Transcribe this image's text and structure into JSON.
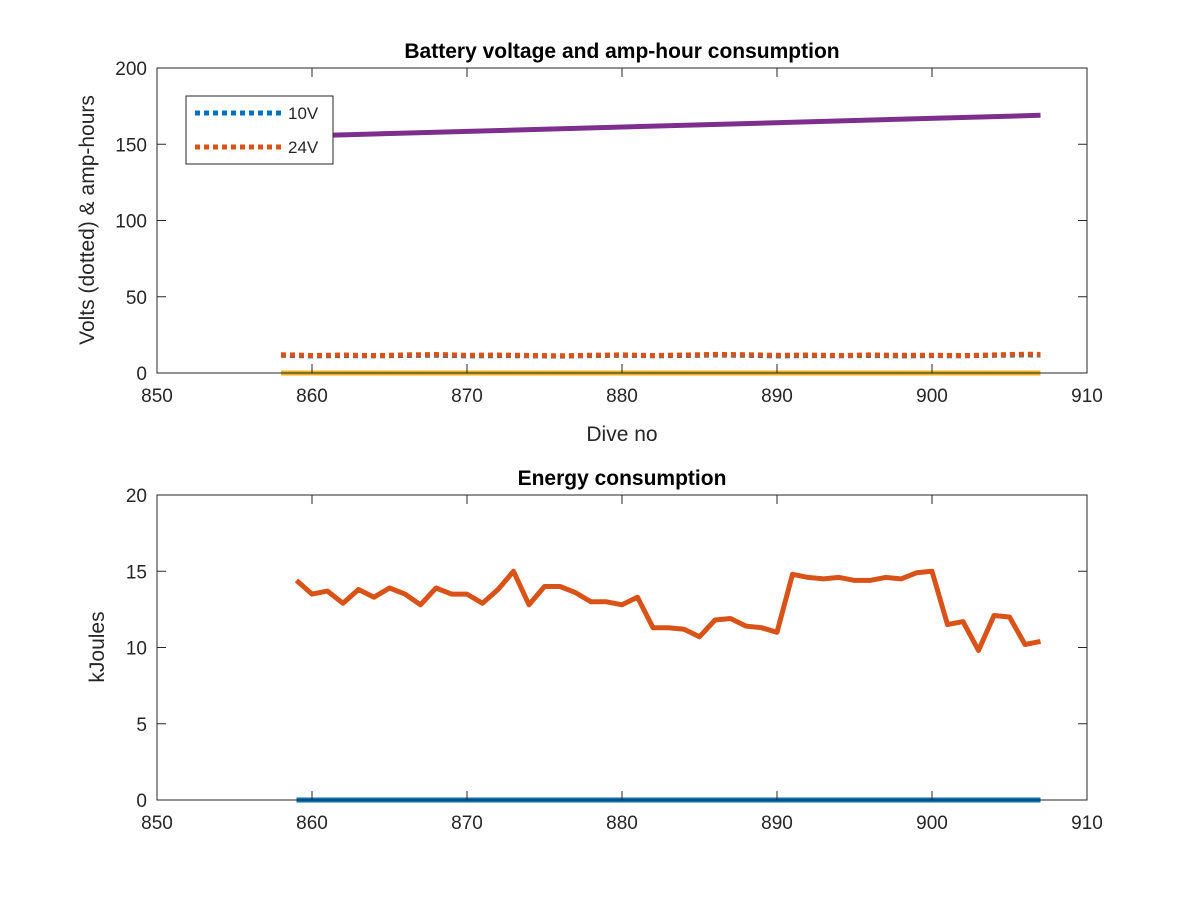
{
  "chart_data": [
    {
      "type": "line",
      "title": "Battery voltage and amp-hour consumption",
      "xlabel": "Dive no",
      "ylabel": "Volts (dotted) & amp-hours",
      "xlim": [
        850,
        910
      ],
      "ylim": [
        0,
        200
      ],
      "xticks": [
        "850",
        "860",
        "870",
        "880",
        "890",
        "900",
        "910"
      ],
      "yticks": [
        "0",
        "50",
        "100",
        "150",
        "200"
      ],
      "grid": false,
      "legend_placement": "top-left",
      "series": [
        {
          "name": "10V",
          "style": "dotted",
          "color": "#0072BD",
          "x": [
            858,
            860,
            862,
            864,
            866,
            868,
            870,
            872,
            874,
            876,
            878,
            880,
            882,
            884,
            886,
            888,
            890,
            892,
            894,
            896,
            898,
            900,
            902,
            904,
            906,
            907
          ],
          "y": [
            11.6,
            11.2,
            11.4,
            11.3,
            11.5,
            11.7,
            11.2,
            11.4,
            11.3,
            11.1,
            11.4,
            11.6,
            11.3,
            11.5,
            11.8,
            11.6,
            11.2,
            11.4,
            11.3,
            11.5,
            11.2,
            11.4,
            11.3,
            11.6,
            11.9,
            11.8
          ]
        },
        {
          "name": "24V",
          "style": "dotted",
          "color": "#D95319",
          "x": [
            858,
            860,
            862,
            864,
            866,
            868,
            870,
            872,
            874,
            876,
            878,
            880,
            882,
            884,
            886,
            888,
            890,
            892,
            894,
            896,
            898,
            900,
            902,
            904,
            906,
            907
          ],
          "y": [
            12.0,
            11.5,
            11.8,
            11.4,
            11.9,
            12.1,
            11.6,
            11.8,
            11.5,
            11.3,
            11.7,
            11.9,
            11.5,
            11.8,
            12.2,
            12.0,
            11.6,
            11.8,
            11.5,
            11.9,
            11.6,
            11.7,
            11.4,
            11.9,
            12.3,
            12.2
          ]
        },
        {
          "style": "solid",
          "color": "#7E2F8E",
          "x": [
            858,
            907
          ],
          "y": [
            155,
            169
          ]
        },
        {
          "style": "solid",
          "color": "#EDB120",
          "x": [
            858,
            907
          ],
          "y": [
            0,
            0
          ]
        }
      ]
    },
    {
      "type": "line",
      "title": "Energy consumption",
      "xlabel": "",
      "ylabel": "kJoules",
      "xlim": [
        850,
        910
      ],
      "ylim": [
        0,
        20
      ],
      "xticks": [
        "850",
        "860",
        "870",
        "880",
        "890",
        "900",
        "910"
      ],
      "yticks": [
        "0",
        "5",
        "10",
        "15",
        "20"
      ],
      "grid": false,
      "series": [
        {
          "style": "solid",
          "color": "#D95319",
          "x": [
            859,
            860,
            861,
            862,
            863,
            864,
            865,
            866,
            867,
            868,
            869,
            870,
            871,
            872,
            873,
            874,
            875,
            876,
            877,
            878,
            879,
            880,
            881,
            882,
            883,
            884,
            885,
            886,
            887,
            888,
            889,
            890,
            891,
            892,
            893,
            894,
            895,
            896,
            897,
            898,
            899,
            900,
            901,
            902,
            903,
            904,
            905,
            906,
            907
          ],
          "y": [
            14.4,
            13.5,
            13.7,
            12.9,
            13.8,
            13.3,
            13.9,
            13.5,
            12.8,
            13.9,
            13.5,
            13.5,
            12.9,
            13.8,
            15.0,
            12.8,
            14.0,
            14.0,
            13.6,
            13.0,
            13.0,
            12.8,
            13.3,
            11.3,
            11.3,
            11.2,
            10.7,
            11.8,
            11.9,
            11.4,
            11.3,
            11.0,
            14.8,
            14.6,
            14.5,
            14.6,
            14.4,
            14.4,
            14.6,
            14.5,
            14.9,
            15.0,
            11.5,
            11.7,
            9.8,
            12.1,
            12.0,
            10.2,
            10.4
          ]
        },
        {
          "style": "solid",
          "color": "#0072BD",
          "x": [
            859,
            907
          ],
          "y": [
            0,
            0
          ]
        }
      ]
    }
  ]
}
